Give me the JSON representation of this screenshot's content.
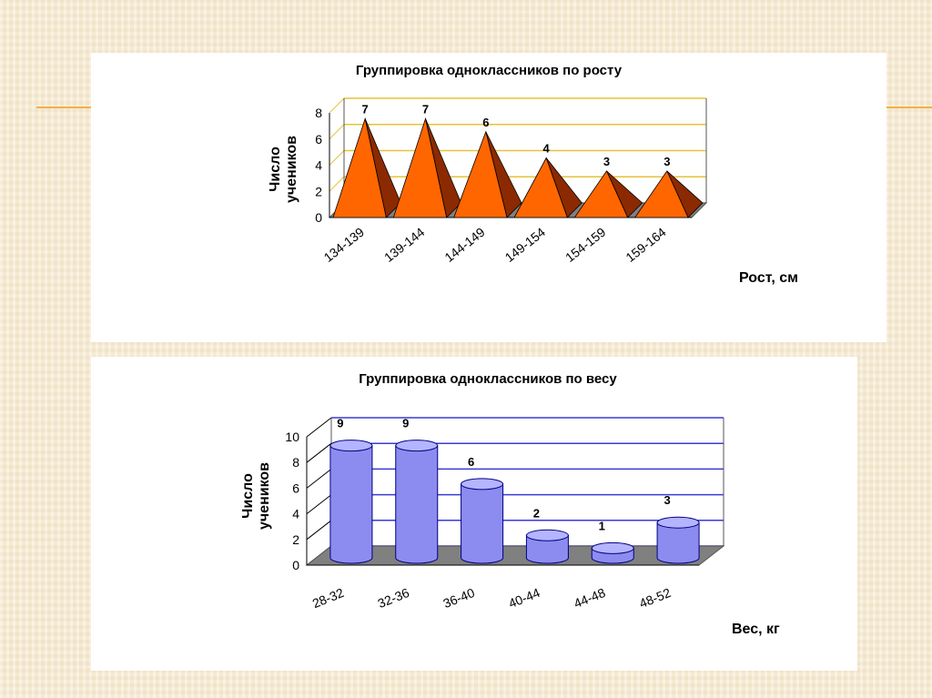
{
  "chart_data": [
    {
      "type": "bar",
      "shape": "pyramid",
      "title": "Группировка одноклассников по росту",
      "xlabel": "Рост, см",
      "ylabel_lines": [
        "Число",
        "учеников"
      ],
      "categories": [
        "134-139",
        "139-144",
        "144-149",
        "149-154",
        "154-159",
        "159-164"
      ],
      "values": [
        7,
        7,
        6,
        4,
        3,
        3
      ],
      "ylim": [
        0,
        8
      ],
      "yticks": [
        0,
        2,
        4,
        6,
        8
      ],
      "grid": true,
      "colors": {
        "front": "#ff6600",
        "side": "#8b2a00",
        "grid": "#e8c23a",
        "floor": "#808080"
      }
    },
    {
      "type": "bar",
      "shape": "cylinder",
      "title": "Группировка одноклассников по весу",
      "xlabel": "Вес, кг",
      "ylabel_lines": [
        "Число",
        "учеников"
      ],
      "categories": [
        "28-32",
        "32-36",
        "36-40",
        "40-44",
        "44-48",
        "48-52"
      ],
      "values": [
        9,
        9,
        6,
        2,
        1,
        3
      ],
      "ylim": [
        0,
        10
      ],
      "yticks": [
        0,
        2,
        4,
        6,
        8,
        10
      ],
      "grid": true,
      "colors": {
        "fill": "#8c8cf0",
        "top": "#b4b4ff",
        "stroke": "#000080",
        "grid": "#3a3ad6",
        "floor": "#808080"
      }
    }
  ]
}
